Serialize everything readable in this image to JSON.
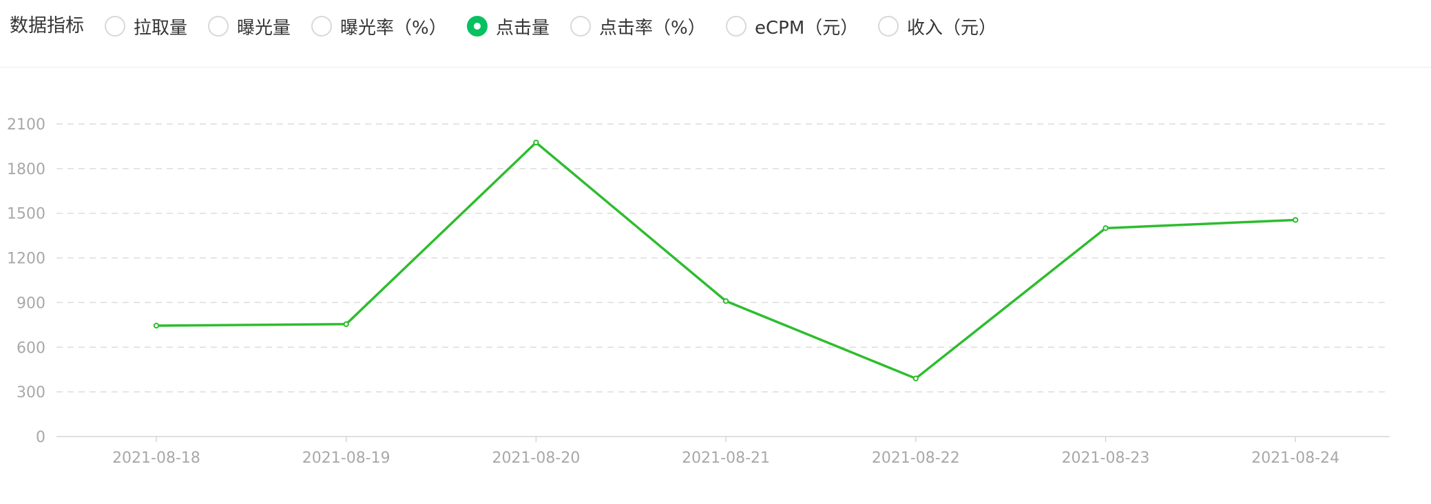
{
  "filter": {
    "label": "数据指标",
    "options": [
      {
        "label": "拉取量",
        "checked": false
      },
      {
        "label": "曝光量",
        "checked": false
      },
      {
        "label": "曝光率（%）",
        "checked": false
      },
      {
        "label": "点击量",
        "checked": true
      },
      {
        "label": "点击率（%）",
        "checked": false
      },
      {
        "label": "eCPM（元）",
        "checked": false
      },
      {
        "label": "收入（元）",
        "checked": false
      }
    ]
  },
  "colors": {
    "accent": "#07c160",
    "line": "#2dbd2d",
    "grid": "#dcdcdc",
    "tick": "#a8a8a8"
  },
  "chart_data": {
    "type": "line",
    "title": "",
    "xlabel": "",
    "ylabel": "",
    "categories": [
      "2021-08-18",
      "2021-08-19",
      "2021-08-20",
      "2021-08-21",
      "2021-08-22",
      "2021-08-23",
      "2021-08-24"
    ],
    "series": [
      {
        "values": [
          745,
          755,
          1975,
          910,
          390,
          1400,
          1455
        ]
      }
    ],
    "yticks": [
      0,
      300,
      600,
      900,
      1200,
      1500,
      1800,
      2100
    ],
    "ylim": [
      0,
      2100
    ],
    "grid": true,
    "legend": "none"
  }
}
